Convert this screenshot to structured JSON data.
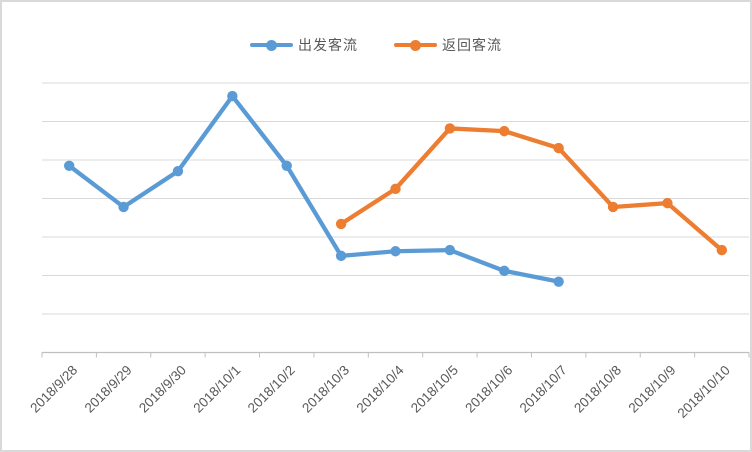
{
  "chart_data": {
    "type": "line",
    "title": "",
    "xlabel": "",
    "ylabel": "",
    "categories": [
      "2018/9/28",
      "2018/9/29",
      "2018/9/30",
      "2018/10/1",
      "2018/10/2",
      "2018/10/3",
      "2018/10/4",
      "2018/10/5",
      "2018/10/6",
      "2018/10/7",
      "2018/10/8",
      "2018/10/9",
      "2018/10/10"
    ],
    "series": [
      {
        "name": "出发客流",
        "color": "#5B9BD5",
        "values": [
          4.85,
          3.78,
          4.71,
          6.66,
          4.85,
          2.51,
          2.63,
          2.66,
          2.12,
          1.84,
          null,
          null,
          null
        ]
      },
      {
        "name": "返回客流",
        "color": "#ED7D31",
        "values": [
          null,
          null,
          null,
          null,
          null,
          3.34,
          4.25,
          5.82,
          5.75,
          5.31,
          3.78,
          3.88,
          2.66
        ]
      }
    ],
    "ylim": [
      0,
      7
    ],
    "grid": true,
    "gridline_count": 7,
    "y_axis_labels_visible": false,
    "legend_position": "top",
    "marker": "circle",
    "note": "y-axis has no visible tick labels; series values estimated in gridline units (1 unit = one horizontal gridline spacing above the baseline axis)"
  },
  "styles": {
    "background": "#FFFFFF",
    "border_color": "#D9D9D9",
    "gridline_color": "#D9D9D9",
    "axis_color": "#BFBFBF",
    "tick_color": "#BFBFBF",
    "label_color": "#595959",
    "legend_text_color": "#595959"
  }
}
